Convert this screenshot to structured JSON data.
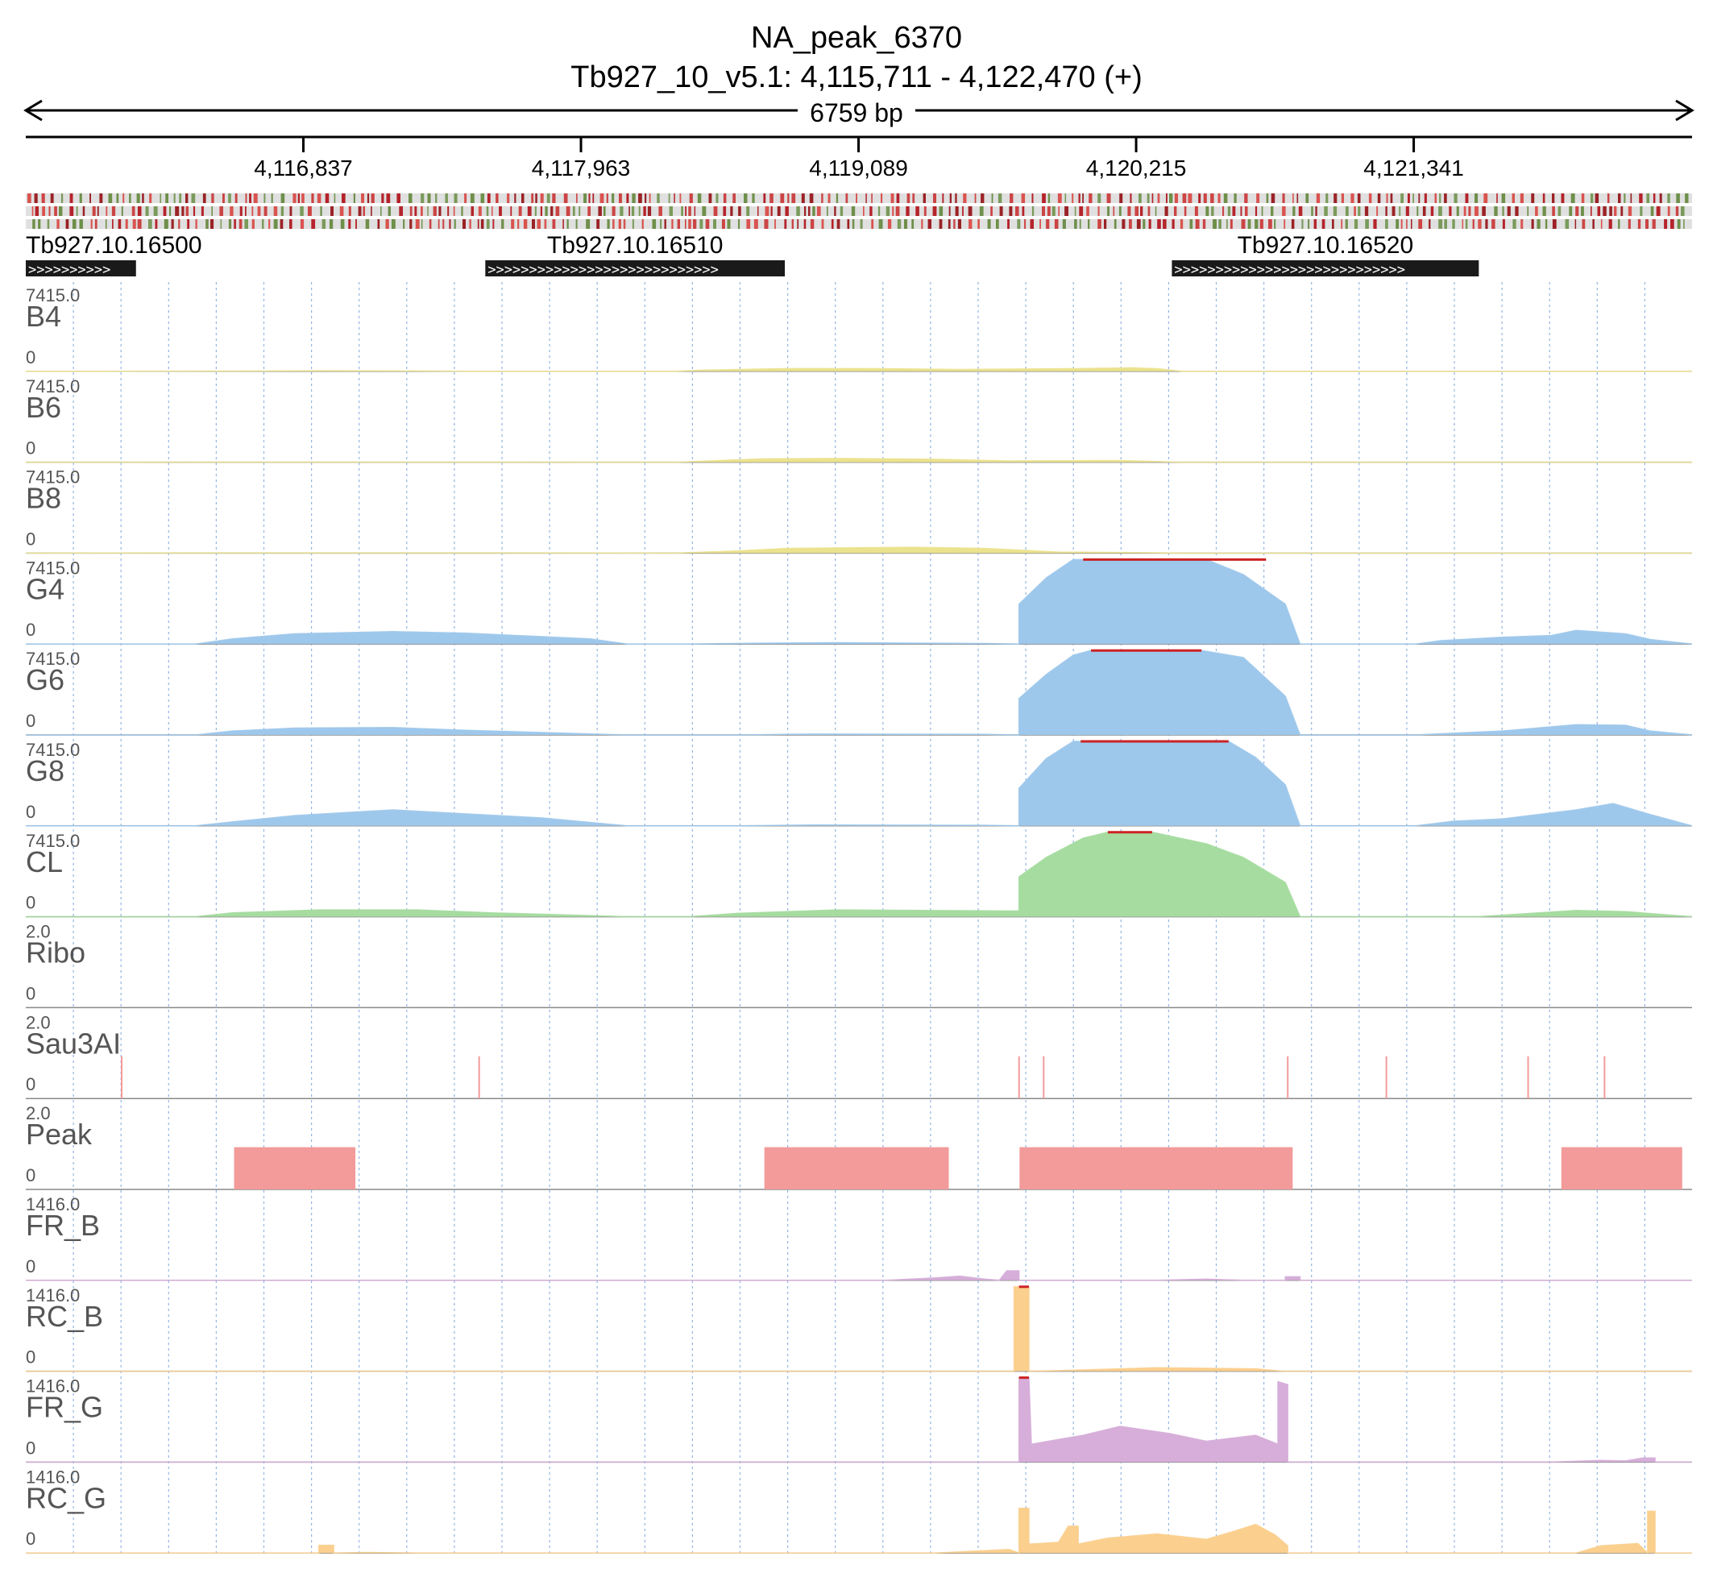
{
  "header": {
    "title": "NA_peak_6370",
    "locus": "Tb927_10_v5.1: 4,115,711 - 4,122,470 (+)",
    "span": "6759 bp"
  },
  "ruler": {
    "ticks": [
      {
        "pos": 4116837,
        "label": "4,116,837"
      },
      {
        "pos": 4117963,
        "label": "4,117,963"
      },
      {
        "pos": 4119089,
        "label": "4,119,089"
      },
      {
        "pos": 4120215,
        "label": "4,120,215"
      },
      {
        "pos": 4121341,
        "label": "4,121,341"
      }
    ]
  },
  "genes": [
    {
      "name": "Tb927.10.16500",
      "start": 4115711,
      "end": 4116158,
      "strand": "+"
    },
    {
      "name": "Tb927.10.16510",
      "start": 4117575,
      "end": 4118790,
      "strand": "+"
    },
    {
      "name": "Tb927.10.16520",
      "start": 4120360,
      "end": 4121605,
      "strand": "+"
    }
  ],
  "colors": {
    "yellow": "#ebe28e",
    "blue": "#9ec8eb",
    "green": "#a6dca0",
    "red": "#f39a9a",
    "purple": "#d6aed9",
    "orange": "#fbcf8e",
    "clip": "#cc2222",
    "grid": "#7fa9dd"
  },
  "chart_data": {
    "type": "area",
    "chrom": "Tb927_10_v5.1",
    "start": 4115711,
    "end": 4122470,
    "tracks": [
      {
        "name": "B4",
        "max": "7415.0",
        "min": "0",
        "ymax": 7415,
        "style": "area",
        "color": "yellow",
        "points": [
          [
            4115711,
            0
          ],
          [
            4116560,
            20
          ],
          [
            4116900,
            60
          ],
          [
            4117200,
            40
          ],
          [
            4117500,
            10
          ],
          [
            4118350,
            0
          ],
          [
            4118450,
            100
          ],
          [
            4118800,
            240
          ],
          [
            4119200,
            230
          ],
          [
            4119500,
            160
          ],
          [
            4119980,
            240
          ],
          [
            4120200,
            310
          ],
          [
            4120300,
            230
          ],
          [
            4120400,
            0
          ],
          [
            4122470,
            0
          ]
        ]
      },
      {
        "name": "B6",
        "max": "7415.0",
        "min": "0",
        "ymax": 7415,
        "style": "area",
        "color": "yellow",
        "points": [
          [
            4115711,
            0
          ],
          [
            4116560,
            10
          ],
          [
            4117500,
            10
          ],
          [
            4118350,
            0
          ],
          [
            4118700,
            300
          ],
          [
            4119000,
            330
          ],
          [
            4119400,
            260
          ],
          [
            4119700,
            110
          ],
          [
            4120150,
            150
          ],
          [
            4120400,
            0
          ],
          [
            4122470,
            0
          ]
        ]
      },
      {
        "name": "B8",
        "max": "7415.0",
        "min": "0",
        "ymax": 7415,
        "style": "area",
        "color": "yellow",
        "points": [
          [
            4115711,
            0
          ],
          [
            4116560,
            20
          ],
          [
            4117500,
            20
          ],
          [
            4118350,
            0
          ],
          [
            4118600,
            200
          ],
          [
            4118800,
            420
          ],
          [
            4119300,
            520
          ],
          [
            4119600,
            420
          ],
          [
            4119900,
            100
          ],
          [
            4120160,
            60
          ],
          [
            4120400,
            0
          ],
          [
            4122470,
            0
          ]
        ]
      },
      {
        "name": "G4",
        "max": "7415.0",
        "min": "0",
        "ymax": 7415,
        "style": "area",
        "color": "blue",
        "clip": [
          4120000,
          4120742
        ],
        "points": [
          [
            4115711,
            0
          ],
          [
            4116400,
            0
          ],
          [
            4116550,
            450
          ],
          [
            4116800,
            900
          ],
          [
            4117200,
            1100
          ],
          [
            4117500,
            950
          ],
          [
            4117750,
            700
          ],
          [
            4118000,
            450
          ],
          [
            4118150,
            0
          ],
          [
            4118400,
            0
          ],
          [
            4118700,
            80
          ],
          [
            4119000,
            120
          ],
          [
            4119600,
            50
          ],
          [
            4119740,
            0
          ],
          [
            4119740,
            3500
          ],
          [
            4119850,
            5800
          ],
          [
            4119960,
            7415
          ],
          [
            4120500,
            7415
          ],
          [
            4120650,
            6100
          ],
          [
            4120820,
            3500
          ],
          [
            4120880,
            0
          ],
          [
            4121350,
            0
          ],
          [
            4121450,
            300
          ],
          [
            4121700,
            600
          ],
          [
            4121900,
            750
          ],
          [
            4122000,
            1200
          ],
          [
            4122200,
            900
          ],
          [
            4122300,
            400
          ],
          [
            4122470,
            0
          ]
        ]
      },
      {
        "name": "G6",
        "max": "7415.0",
        "min": "0",
        "ymax": 7415,
        "style": "area",
        "color": "blue",
        "clip": [
          4120032,
          4120480
        ],
        "points": [
          [
            4115711,
            0
          ],
          [
            4116400,
            0
          ],
          [
            4116550,
            350
          ],
          [
            4116800,
            600
          ],
          [
            4117200,
            650
          ],
          [
            4117500,
            400
          ],
          [
            4118150,
            0
          ],
          [
            4118600,
            0
          ],
          [
            4118900,
            80
          ],
          [
            4119600,
            50
          ],
          [
            4119740,
            0
          ],
          [
            4119740,
            3200
          ],
          [
            4119850,
            5300
          ],
          [
            4119960,
            7000
          ],
          [
            4120030,
            7415
          ],
          [
            4120480,
            7415
          ],
          [
            4120650,
            6800
          ],
          [
            4120820,
            3400
          ],
          [
            4120880,
            0
          ],
          [
            4121350,
            0
          ],
          [
            4121700,
            350
          ],
          [
            4122000,
            900
          ],
          [
            4122200,
            850
          ],
          [
            4122300,
            350
          ],
          [
            4122470,
            0
          ]
        ]
      },
      {
        "name": "G8",
        "max": "7415.0",
        "min": "0",
        "ymax": 7415,
        "style": "area",
        "color": "blue",
        "clip": [
          4119990,
          4120590
        ],
        "points": [
          [
            4115711,
            0
          ],
          [
            4116400,
            0
          ],
          [
            4116550,
            350
          ],
          [
            4116800,
            900
          ],
          [
            4117200,
            1400
          ],
          [
            4117500,
            1050
          ],
          [
            4117800,
            700
          ],
          [
            4118150,
            0
          ],
          [
            4118600,
            0
          ],
          [
            4118900,
            80
          ],
          [
            4119600,
            50
          ],
          [
            4119740,
            0
          ],
          [
            4119740,
            3300
          ],
          [
            4119850,
            5900
          ],
          [
            4119960,
            7415
          ],
          [
            4120590,
            7415
          ],
          [
            4120700,
            6000
          ],
          [
            4120820,
            3600
          ],
          [
            4120880,
            0
          ],
          [
            4121350,
            0
          ],
          [
            4121500,
            400
          ],
          [
            4121700,
            600
          ],
          [
            4122000,
            1400
          ],
          [
            4122150,
            1950
          ],
          [
            4122300,
            1000
          ],
          [
            4122470,
            0
          ]
        ]
      },
      {
        "name": "CL",
        "max": "7415.0",
        "min": "0",
        "ymax": 7415,
        "style": "area",
        "color": "green",
        "clip": [
          4120100,
          4120280
        ],
        "points": [
          [
            4115711,
            0
          ],
          [
            4116400,
            0
          ],
          [
            4116550,
            350
          ],
          [
            4116900,
            600
          ],
          [
            4117300,
            600
          ],
          [
            4117600,
            350
          ],
          [
            4118150,
            0
          ],
          [
            4118400,
            0
          ],
          [
            4118600,
            300
          ],
          [
            4119000,
            600
          ],
          [
            4119740,
            500
          ],
          [
            4119740,
            3500
          ],
          [
            4119850,
            5200
          ],
          [
            4120000,
            6900
          ],
          [
            4120100,
            7415
          ],
          [
            4120280,
            7415
          ],
          [
            4120500,
            6400
          ],
          [
            4120650,
            5200
          ],
          [
            4120820,
            3000
          ],
          [
            4120880,
            0
          ],
          [
            4121600,
            0
          ],
          [
            4121850,
            350
          ],
          [
            4122000,
            550
          ],
          [
            4122200,
            450
          ],
          [
            4122470,
            0
          ]
        ]
      },
      {
        "name": "Ribo",
        "max": "2.0",
        "min": "0",
        "ymax": 2,
        "style": "area",
        "color": "red",
        "points": []
      },
      {
        "name": "Sau3AI",
        "max": "2.0",
        "min": "0",
        "ymax": 2,
        "style": "sites",
        "color": "red",
        "height": 1,
        "sites": [
          4116100,
          4117550,
          4119740,
          4119840,
          4120830,
          4121230,
          4121805,
          4122115
        ]
      },
      {
        "name": "Peak",
        "max": "2.0",
        "min": "0",
        "ymax": 2,
        "style": "blocks",
        "color": "red",
        "height": 1,
        "blocks": [
          [
            4116556,
            4117048
          ],
          [
            4118707,
            4119455
          ],
          [
            4119742,
            4120850
          ],
          [
            4121940,
            4122430
          ]
        ]
      },
      {
        "name": "FR_B",
        "max": "1416.0",
        "min": "0",
        "ymax": 1416,
        "style": "area",
        "color": "purple",
        "points": [
          [
            4115711,
            0
          ],
          [
            4119200,
            0
          ],
          [
            4119400,
            40
          ],
          [
            4119500,
            70
          ],
          [
            4119600,
            20
          ],
          [
            4119660,
            0
          ],
          [
            4119690,
            160
          ],
          [
            4119740,
            160
          ],
          [
            4119740,
            0
          ],
          [
            4120300,
            0
          ],
          [
            4120500,
            20
          ],
          [
            4120650,
            0
          ],
          [
            4120820,
            0
          ],
          [
            4120820,
            60
          ],
          [
            4120880,
            60
          ],
          [
            4120880,
            0
          ],
          [
            4122470,
            0
          ]
        ]
      },
      {
        "name": "RC_B",
        "max": "1416.0",
        "min": "0",
        "ymax": 1416,
        "style": "area",
        "color": "orange",
        "clip": [
          4119740,
          4119780
        ],
        "points": [
          [
            4115711,
            0
          ],
          [
            4119720,
            0
          ],
          [
            4119720,
            1416
          ],
          [
            4119780,
            1416
          ],
          [
            4119780,
            0
          ],
          [
            4119900,
            10
          ],
          [
            4120300,
            60
          ],
          [
            4120700,
            40
          ],
          [
            4120810,
            0
          ],
          [
            4122470,
            0
          ]
        ]
      },
      {
        "name": "FR_G",
        "max": "1416.0",
        "min": "0",
        "ymax": 1416,
        "style": "area",
        "color": "purple",
        "clip": [
          4119740,
          4119780
        ],
        "points": [
          [
            4115711,
            0
          ],
          [
            4119740,
            0
          ],
          [
            4119740,
            1416
          ],
          [
            4119780,
            1416
          ],
          [
            4119790,
            300
          ],
          [
            4119900,
            380
          ],
          [
            4120000,
            450
          ],
          [
            4120150,
            600
          ],
          [
            4120350,
            480
          ],
          [
            4120500,
            350
          ],
          [
            4120700,
            450
          ],
          [
            4120790,
            300
          ],
          [
            4120790,
            1350
          ],
          [
            4120830,
            1300
          ],
          [
            4120830,
            0
          ],
          [
            4121900,
            0
          ],
          [
            4122100,
            30
          ],
          [
            4122200,
            20
          ],
          [
            4122270,
            70
          ],
          [
            4122320,
            70
          ],
          [
            4122320,
            0
          ],
          [
            4122470,
            0
          ]
        ]
      },
      {
        "name": "RC_G",
        "max": "1416.0",
        "min": "0",
        "ymax": 1416,
        "style": "area",
        "color": "orange",
        "points": [
          [
            4115711,
            0
          ],
          [
            4116900,
            0
          ],
          [
            4116900,
            130
          ],
          [
            4116960,
            130
          ],
          [
            4116960,
            0
          ],
          [
            4117100,
            10
          ],
          [
            4117300,
            0
          ],
          [
            4119400,
            0
          ],
          [
            4119700,
            60
          ],
          [
            4119740,
            0
          ],
          [
            4119740,
            750
          ],
          [
            4119780,
            750
          ],
          [
            4119780,
            150
          ],
          [
            4119900,
            180
          ],
          [
            4119940,
            450
          ],
          [
            4119980,
            450
          ],
          [
            4119980,
            150
          ],
          [
            4120100,
            250
          ],
          [
            4120300,
            320
          ],
          [
            4120500,
            230
          ],
          [
            4120600,
            350
          ],
          [
            4120700,
            480
          ],
          [
            4120780,
            300
          ],
          [
            4120830,
            120
          ],
          [
            4120830,
            0
          ],
          [
            4122000,
            0
          ],
          [
            4122100,
            120
          ],
          [
            4122250,
            160
          ],
          [
            4122290,
            0
          ],
          [
            4122290,
            700
          ],
          [
            4122320,
            700
          ],
          [
            4122320,
            0
          ],
          [
            4122470,
            0
          ]
        ]
      }
    ]
  }
}
